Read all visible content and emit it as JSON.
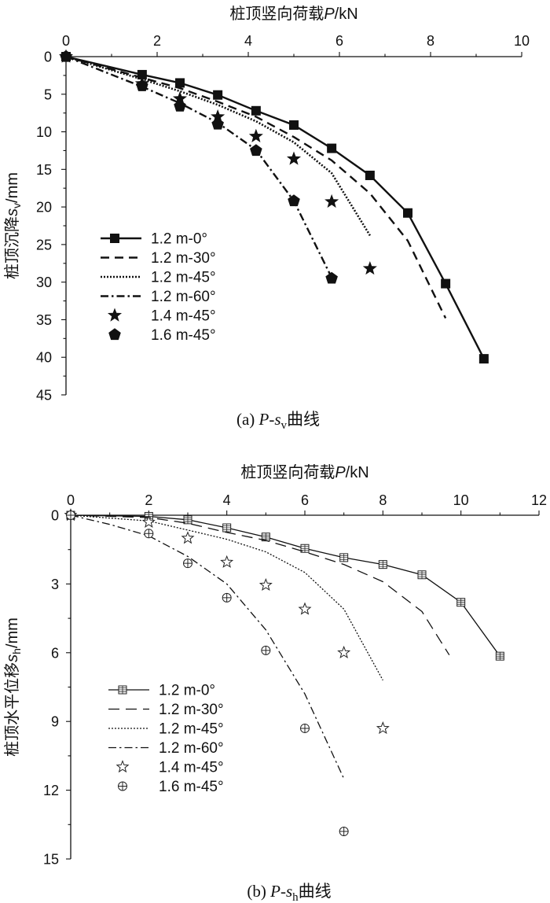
{
  "chart_data": [
    {
      "type": "line",
      "title_top": "桩顶竖向荷载P/kN",
      "xlabel": "桩顶竖向荷载",
      "xlabel_var": "P",
      "xlabel_unit": "/kN",
      "ylabel": "桩顶沉降",
      "ylabel_var": "s",
      "ylabel_sub": "v",
      "ylabel_unit": "/mm",
      "xlim": [
        0,
        10
      ],
      "ylim": [
        0,
        45
      ],
      "xticks": [
        0,
        2,
        4,
        6,
        8,
        10
      ],
      "yticks": [
        0,
        5,
        10,
        15,
        20,
        25,
        30,
        35,
        40,
        45
      ],
      "caption_prefix": "(a) ",
      "caption_var": "P",
      "caption_mid": "-s",
      "caption_sub": "v",
      "caption_suffix": "曲线",
      "legend_position": "bottom-left",
      "series": [
        {
          "name": "1.2 m-0°",
          "style": "solid-square",
          "x": [
            0,
            1.67,
            2.5,
            3.33,
            4.17,
            5.0,
            5.83,
            6.67,
            7.5,
            8.33,
            9.17
          ],
          "y": [
            0,
            2.4,
            3.5,
            5.1,
            7.2,
            9.1,
            12.2,
            15.8,
            20.8,
            30.2,
            40.2
          ]
        },
        {
          "name": "1.2 m-30°",
          "style": "dashed",
          "x": [
            0,
            1.67,
            2.5,
            3.33,
            4.17,
            5.0,
            5.83,
            6.67,
            7.5,
            8.33
          ],
          "y": [
            0,
            2.8,
            4.2,
            6.0,
            8.0,
            10.7,
            13.8,
            18.2,
            24.5,
            34.8
          ]
        },
        {
          "name": "1.2 m-45°",
          "style": "dotted",
          "x": [
            0,
            1.67,
            2.5,
            3.33,
            4.17,
            5.0,
            5.83,
            6.67
          ],
          "y": [
            0,
            3.0,
            4.6,
            6.4,
            8.6,
            11.4,
            15.5,
            23.8
          ]
        },
        {
          "name": "1.2 m-60°",
          "style": "dashdot",
          "x": [
            0,
            1.67,
            2.5,
            3.33,
            4.17,
            5.0,
            5.83
          ],
          "y": [
            0,
            4.0,
            6.2,
            8.8,
            12.4,
            19.2,
            29.4
          ]
        },
        {
          "name": "1.4 m-45°",
          "style": "star",
          "x": [
            0,
            1.67,
            2.5,
            3.33,
            4.17,
            5.0,
            5.83,
            6.67
          ],
          "y": [
            0,
            3.6,
            5.6,
            8.0,
            10.6,
            13.6,
            19.3,
            28.2
          ]
        },
        {
          "name": "1.6 m-45°",
          "style": "pentagon",
          "x": [
            0,
            1.67,
            2.5,
            3.33,
            4.17,
            5.0,
            5.83
          ],
          "y": [
            0,
            3.9,
            6.6,
            9.0,
            12.5,
            19.2,
            29.5
          ]
        }
      ]
    },
    {
      "type": "line",
      "title_top": "桩顶竖向荷载P/kN",
      "xlabel": "桩顶竖向荷载",
      "xlabel_var": "P",
      "xlabel_unit": "/kN",
      "ylabel": "桩顶水平位移",
      "ylabel_var": "s",
      "ylabel_sub": "h",
      "ylabel_unit": "/mm",
      "xlim": [
        0,
        12
      ],
      "ylim": [
        0,
        15
      ],
      "xticks": [
        0,
        2,
        4,
        6,
        8,
        10,
        12
      ],
      "yticks": [
        0,
        3,
        6,
        9,
        12,
        15
      ],
      "caption_prefix": "(b) ",
      "caption_var": "P",
      "caption_mid": "-s",
      "caption_sub": "h",
      "caption_suffix": "曲线",
      "legend_position": "bottom-left",
      "series": [
        {
          "name": "1.2 m-0°",
          "style": "solid-boxplus",
          "x": [
            0,
            2,
            3,
            4,
            5,
            6,
            7,
            8,
            9,
            10,
            11
          ],
          "y": [
            0,
            0.05,
            0.2,
            0.55,
            0.95,
            1.45,
            1.85,
            2.15,
            2.6,
            3.8,
            6.15
          ]
        },
        {
          "name": "1.2 m-30°",
          "style": "longdash",
          "x": [
            0,
            2,
            3,
            4,
            5,
            6,
            7,
            8,
            9,
            9.7
          ],
          "y": [
            0,
            0.1,
            0.35,
            0.75,
            1.1,
            1.6,
            2.15,
            2.9,
            4.2,
            6.1
          ]
        },
        {
          "name": "1.2 m-45°",
          "style": "dotted",
          "x": [
            0,
            2,
            3,
            4,
            5,
            6,
            7,
            8
          ],
          "y": [
            0,
            0.25,
            0.65,
            1.05,
            1.6,
            2.5,
            4.1,
            7.2
          ]
        },
        {
          "name": "1.2 m-60°",
          "style": "dashdot",
          "x": [
            0,
            1,
            2,
            3,
            4,
            5,
            6,
            7
          ],
          "y": [
            0,
            0.4,
            0.9,
            1.8,
            3.0,
            5.0,
            7.8,
            11.5
          ]
        },
        {
          "name": "1.4 m-45°",
          "style": "star-open",
          "x": [
            0,
            2,
            3,
            4,
            5,
            6,
            7,
            8
          ],
          "y": [
            0,
            0.3,
            1.0,
            2.05,
            3.05,
            4.1,
            6.0,
            9.3
          ]
        },
        {
          "name": "1.6 m-45°",
          "style": "circle-plus",
          "x": [
            0,
            2,
            3,
            4,
            5,
            6,
            7
          ],
          "y": [
            0,
            0.8,
            2.1,
            3.6,
            5.9,
            9.3,
            13.8
          ]
        }
      ]
    }
  ]
}
